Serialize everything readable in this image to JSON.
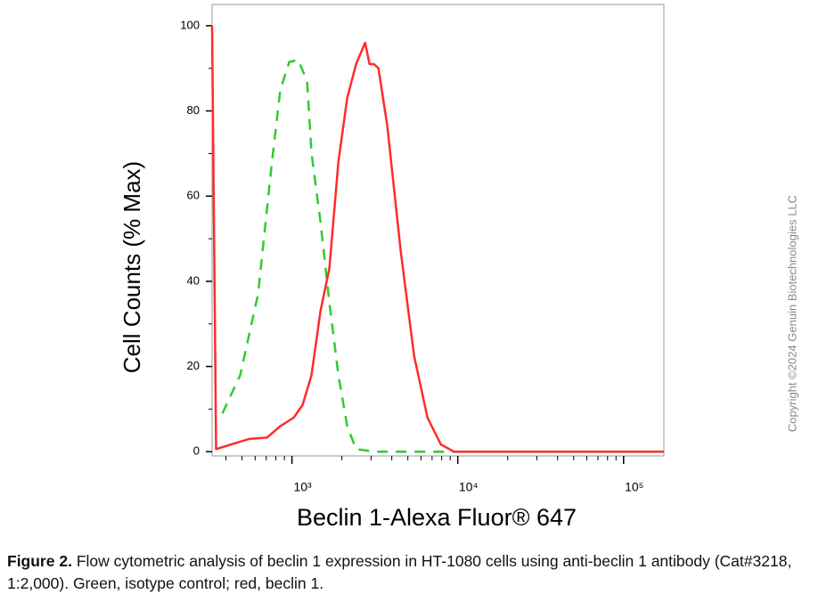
{
  "chart_data": {
    "type": "line",
    "x_label": "Beclin 1-Alexa Fluor® 647",
    "y_label": "Cell Counts (% Max)",
    "xscale": "log",
    "xlim": [
      330,
      175000
    ],
    "xticks": [
      {
        "value": 1000,
        "label": "10³"
      },
      {
        "value": 10000,
        "label": "10⁴"
      },
      {
        "value": 100000,
        "label": "10⁵"
      }
    ],
    "xminorticks": [
      400,
      500,
      600,
      700,
      800,
      900,
      2000,
      3000,
      4000,
      5000,
      6000,
      7000,
      8000,
      9000,
      20000,
      30000,
      40000,
      50000,
      60000,
      70000,
      80000,
      90000
    ],
    "ylim": [
      -1,
      105
    ],
    "yticks": [
      0,
      20,
      40,
      60,
      80,
      100
    ],
    "yminorticks": [
      10,
      30,
      50,
      70,
      90
    ],
    "series": [
      {
        "color": "#2ecc2e",
        "dash": true,
        "x": [
          381,
          488,
          625,
          752,
          851,
          963,
          1090,
          1234,
          1313,
          1486,
          1682,
          1905,
          2154,
          2438,
          3126,
          10770
        ],
        "values": [
          9,
          18,
          37,
          67,
          85,
          91.5,
          92,
          87,
          70,
          54,
          35,
          18,
          6,
          0.6,
          0,
          0
        ]
      },
      {
        "color": "#ff2b2b",
        "dash": false,
        "x": [
          330,
          349,
          430,
          552,
          707,
          851,
          1025,
          1160,
          1313,
          1486,
          1682,
          1905,
          2154,
          2438,
          2761,
          2938,
          3126,
          3327,
          3760,
          4530,
          5457,
          6565,
          7906,
          9510,
          175000
        ],
        "values": [
          100,
          0.6,
          1.7,
          3,
          3.3,
          6,
          8,
          11,
          18,
          33,
          43,
          68,
          83,
          91,
          96,
          91,
          91,
          90,
          76.5,
          47,
          22.5,
          8,
          1.7,
          0,
          0
        ]
      }
    ]
  },
  "copyright": "Copyright ©2024 Genuin Biotechnologies LLC",
  "caption": {
    "lead": "Figure 2.",
    "text": "Flow cytometric analysis of beclin 1 expression in HT-1080 cells using anti-beclin 1 antibody (Cat#3218, 1:2,000). Green, isotype control; red, beclin 1."
  }
}
